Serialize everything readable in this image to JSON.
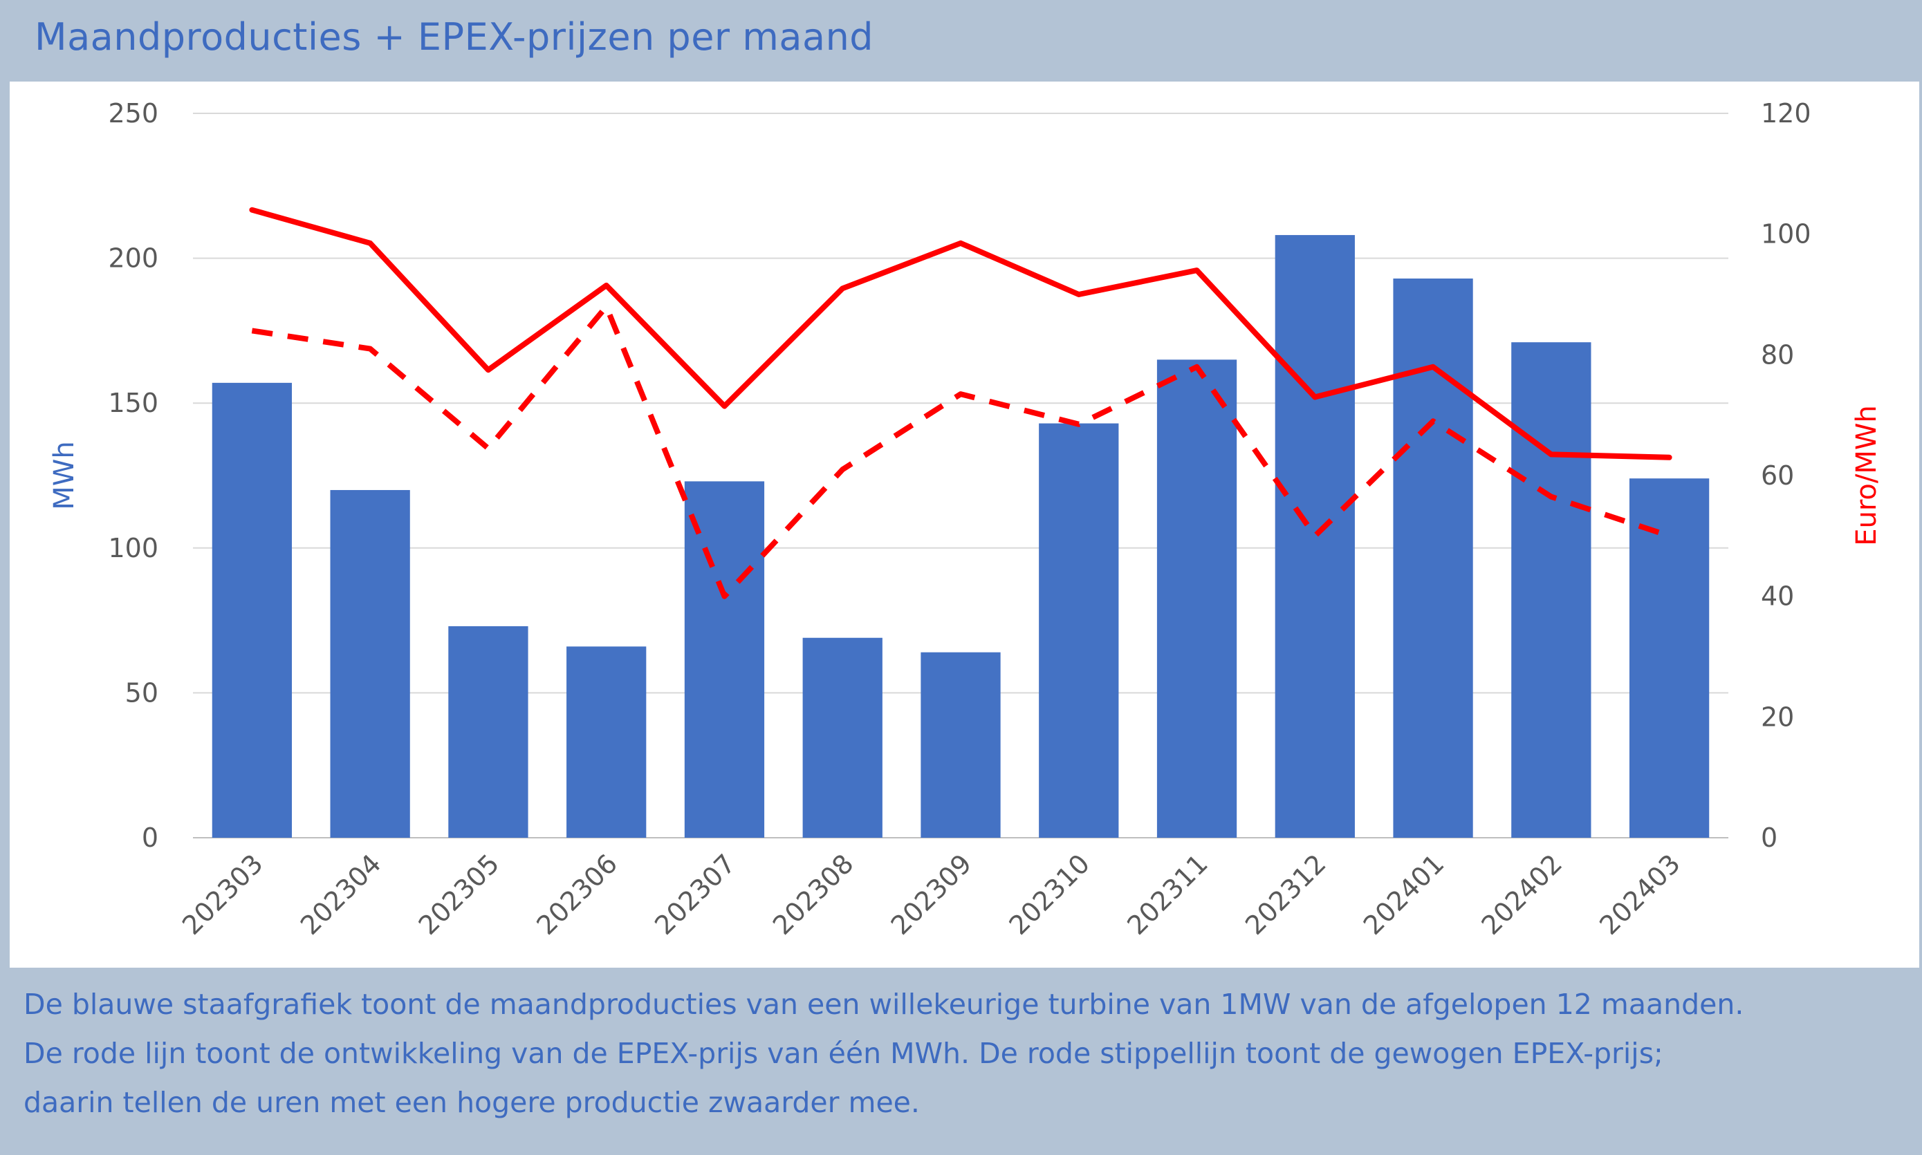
{
  "header": {
    "title": "Maandproducties + EPEX-prijzen per maand"
  },
  "footer": {
    "lines": [
      "De blauwe staafgrafiek toont de maandproducties van een willekeurige turbine van 1MW van de afgelopen 12 maanden.",
      "De rode lijn toont de ontwikkeling van de EPEX-prijs van één MWh. De rode stippellijn toont de gewogen EPEX-prijs;",
      "daarin tellen de uren met een hogere productie zwaarder mee."
    ]
  },
  "colors": {
    "frame": "#b3c3d5",
    "bar": "#4472c4",
    "line": "#ff0000",
    "text_blue": "#3e6bc0",
    "grid": "#d9d9d9",
    "tick": "#595959"
  },
  "chart_data": {
    "type": "bar",
    "categories": [
      "202303",
      "202304",
      "202305",
      "202306",
      "202307",
      "202308",
      "202309",
      "202310",
      "202311",
      "202312",
      "202401",
      "202402",
      "202403"
    ],
    "ylabel": "MWh",
    "y2label": "Euro/MWh",
    "ylim": [
      0,
      250
    ],
    "y2lim": [
      0,
      120
    ],
    "yticks": [
      0,
      50,
      100,
      150,
      200,
      250
    ],
    "y2ticks": [
      0,
      20,
      40,
      60,
      80,
      100,
      120
    ],
    "grid": true,
    "series": [
      {
        "type": "bar",
        "axis": "left",
        "values": [
          157,
          120,
          73,
          66,
          123,
          69,
          64,
          143,
          165,
          208,
          193,
          171,
          124
        ]
      },
      {
        "type": "line",
        "axis": "right",
        "style": "solid",
        "values": [
          104,
          98.5,
          77.5,
          91.5,
          71.5,
          91,
          98.5,
          90,
          94,
          73,
          78,
          63.5,
          63
        ]
      },
      {
        "type": "line",
        "axis": "right",
        "style": "dashed",
        "values": [
          84,
          81,
          64.5,
          88,
          40,
          61,
          73.5,
          68.5,
          78,
          50,
          69,
          56.5,
          50
        ]
      }
    ]
  }
}
